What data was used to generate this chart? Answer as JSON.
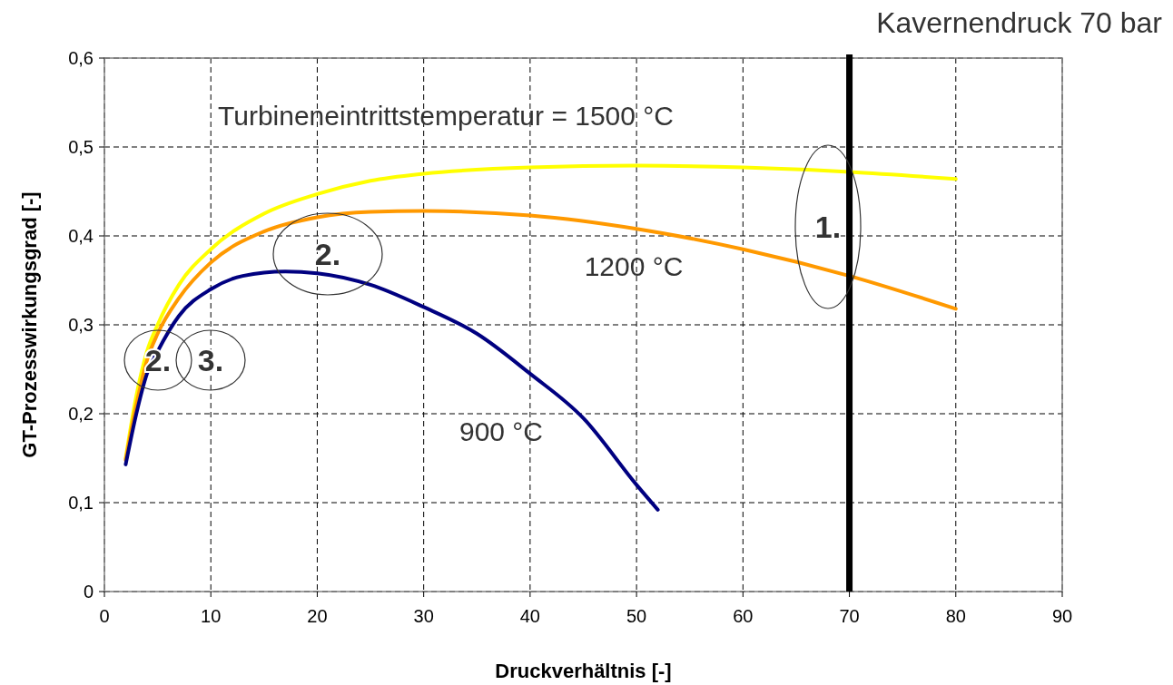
{
  "chart_data": {
    "type": "line",
    "xlabel": "Druckverhältnis [-]",
    "ylabel": "GT-Prozesswirkungsgrad [-]",
    "xlim": [
      0,
      90
    ],
    "xticks": [
      0,
      10,
      20,
      30,
      40,
      50,
      60,
      70,
      80,
      90
    ],
    "ylim": [
      0,
      0.6
    ],
    "yticks": [
      {
        "value": 0,
        "label": "0"
      },
      {
        "value": 0.1,
        "label": "0,1"
      },
      {
        "value": 0.2,
        "label": "0,2"
      },
      {
        "value": 0.3,
        "label": "0,3"
      },
      {
        "value": 0.4,
        "label": "0,4"
      },
      {
        "value": 0.5,
        "label": "0,5"
      },
      {
        "value": 0.6,
        "label": "0,6"
      }
    ],
    "grid": true,
    "line_style": "solid",
    "marker": "none",
    "series": [
      {
        "name": "Turbineneintrittstemperatur  = 1500 °C",
        "color": "#ffff00",
        "x": [
          2,
          3,
          4,
          5,
          7,
          10,
          15,
          20,
          25,
          30,
          40,
          50,
          60,
          70,
          80
        ],
        "values": [
          0.15,
          0.22,
          0.27,
          0.3,
          0.345,
          0.385,
          0.425,
          0.447,
          0.462,
          0.47,
          0.477,
          0.479,
          0.477,
          0.472,
          0.464
        ]
      },
      {
        "name": "1200 °C",
        "color": "#ff9900",
        "x": [
          2,
          3,
          4,
          5,
          7,
          10,
          15,
          20,
          25,
          30,
          40,
          50,
          60,
          70,
          80
        ],
        "values": [
          0.148,
          0.21,
          0.26,
          0.29,
          0.33,
          0.37,
          0.405,
          0.421,
          0.427,
          0.428,
          0.423,
          0.408,
          0.385,
          0.355,
          0.318
        ]
      },
      {
        "name": "900 °C",
        "color": "#000080",
        "x": [
          2,
          3,
          4,
          5,
          7,
          10,
          13,
          17,
          20,
          25,
          30,
          35,
          40,
          45,
          50,
          52
        ],
        "values": [
          0.143,
          0.2,
          0.245,
          0.27,
          0.31,
          0.34,
          0.355,
          0.36,
          0.358,
          0.345,
          0.32,
          0.29,
          0.245,
          0.195,
          0.12,
          0.092
        ]
      }
    ],
    "ref_lines": [
      {
        "axis": "x",
        "value": 70,
        "label": "Kavernendruck 70 bar",
        "color": "#000000"
      }
    ],
    "annotations": [
      "1.",
      "2.",
      "2.",
      "3."
    ]
  }
}
